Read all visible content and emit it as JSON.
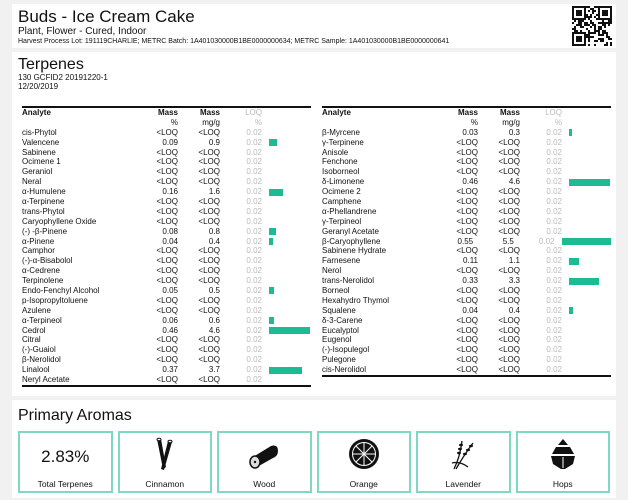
{
  "header": {
    "title": "Buds - Ice Cream Cake",
    "subtitle": "Plant, Flower - Cured, Indoor",
    "lot_line": "Harvest Process Lot: 191119CHARLIE; METRC Batch: 1A401030000B1BE0000000634; METRC Sample: 1A401030000B1BE0000000641",
    "qr_icon": "qr-code"
  },
  "terpenes": {
    "title": "Terpenes",
    "instrument": "130 GCFID2 20191220-1",
    "date": "12/20/2019",
    "columns": {
      "analyte": "Analyte",
      "mass_pct": "Mass",
      "mass_mgg": "Mass",
      "loq": "LOQ",
      "unit_pct": "%",
      "unit_mgg": "mg/g",
      "unit_loq": "%"
    },
    "bar_color": "#1dba94",
    "left": [
      [
        "cis-Phytol",
        "<LOQ",
        "<LOQ",
        "0.02"
      ],
      [
        "Valencene",
        "0.09",
        "0.9",
        "0.02"
      ],
      [
        "Sabinene",
        "<LOQ",
        "<LOQ",
        "0.02"
      ],
      [
        "Ocimene 1",
        "<LOQ",
        "<LOQ",
        "0.02"
      ],
      [
        "Geraniol",
        "<LOQ",
        "<LOQ",
        "0.02"
      ],
      [
        "Neral",
        "<LOQ",
        "<LOQ",
        "0.02"
      ],
      [
        "α-Humulene",
        "0.16",
        "1.6",
        "0.02"
      ],
      [
        "α-Terpinene",
        "<LOQ",
        "<LOQ",
        "0.02"
      ],
      [
        "trans-Phytol",
        "<LOQ",
        "<LOQ",
        "0.02"
      ],
      [
        "Caryophyllene Oxide",
        "<LOQ",
        "<LOQ",
        "0.02"
      ],
      [
        "(-) -β-Pinene",
        "0.08",
        "0.8",
        "0.02"
      ],
      [
        "α-Pinene",
        "0.04",
        "0.4",
        "0.02"
      ],
      [
        "Camphor",
        "<LOQ",
        "<LOQ",
        "0.02"
      ],
      [
        "(-)-α-Bisabolol",
        "<LOQ",
        "<LOQ",
        "0.02"
      ],
      [
        "α-Cedrene",
        "<LOQ",
        "<LOQ",
        "0.02"
      ],
      [
        "Terpinolene",
        "<LOQ",
        "<LOQ",
        "0.02"
      ],
      [
        "Endo-Fenchyl Alcohol",
        "0.05",
        "0.5",
        "0.02"
      ],
      [
        "p-Isopropyltoluene",
        "<LOQ",
        "<LOQ",
        "0.02"
      ],
      [
        "Azulene",
        "<LOQ",
        "<LOQ",
        "0.02"
      ],
      [
        "α-Terpineol",
        "0.06",
        "0.6",
        "0.02"
      ],
      [
        "Cedrol",
        "0.46",
        "4.6",
        "0.02"
      ],
      [
        "Citral",
        "<LOQ",
        "<LOQ",
        "0.02"
      ],
      [
        "(-)-Guaiol",
        "<LOQ",
        "<LOQ",
        "0.02"
      ],
      [
        "β-Nerolidol",
        "<LOQ",
        "<LOQ",
        "0.02"
      ],
      [
        "Linalool",
        "0.37",
        "3.7",
        "0.02"
      ],
      [
        "Neryl Acetate",
        "<LOQ",
        "<LOQ",
        "0.02"
      ]
    ],
    "right": [
      [
        "β-Myrcene",
        "0.03",
        "0.3",
        "0.02"
      ],
      [
        "γ-Terpinene",
        "<LOQ",
        "<LOQ",
        "0.02"
      ],
      [
        "Anisole",
        "<LOQ",
        "<LOQ",
        "0.02"
      ],
      [
        "Fenchone",
        "<LOQ",
        "<LOQ",
        "0.02"
      ],
      [
        "Isoborneol",
        "<LOQ",
        "<LOQ",
        "0.02"
      ],
      [
        "δ-Limonene",
        "0.46",
        "4.6",
        "0.02"
      ],
      [
        "Ocimene 2",
        "<LOQ",
        "<LOQ",
        "0.02"
      ],
      [
        "Camphene",
        "<LOQ",
        "<LOQ",
        "0.02"
      ],
      [
        "α-Phellandrene",
        "<LOQ",
        "<LOQ",
        "0.02"
      ],
      [
        "γ-Terpineol",
        "<LOQ",
        "<LOQ",
        "0.02"
      ],
      [
        "Geranyl Acetate",
        "<LOQ",
        "<LOQ",
        "0.02"
      ],
      [
        "β-Caryophyllene",
        "0.55",
        "5.5",
        "0.02"
      ],
      [
        "Sabinene Hydrate",
        "<LOQ",
        "<LOQ",
        "0.02"
      ],
      [
        "Farnesene",
        "0.11",
        "1.1",
        "0.02"
      ],
      [
        "Nerol",
        "<LOQ",
        "<LOQ",
        "0.02"
      ],
      [
        "trans-Nerolidol",
        "0.33",
        "3.3",
        "0.02"
      ],
      [
        "Borneol",
        "<LOQ",
        "<LOQ",
        "0.02"
      ],
      [
        "Hexahydro Thymol",
        "<LOQ",
        "<LOQ",
        "0.02"
      ],
      [
        "Squalene",
        "0.04",
        "0.4",
        "0.02"
      ],
      [
        "δ-3-Carene",
        "<LOQ",
        "<LOQ",
        "0.02"
      ],
      [
        "Eucalyptol",
        "<LOQ",
        "<LOQ",
        "0.02"
      ],
      [
        "Eugenol",
        "<LOQ",
        "<LOQ",
        "0.02"
      ],
      [
        "(-)-Isopulegol",
        "<LOQ",
        "<LOQ",
        "0.02"
      ],
      [
        "Pulegone",
        "<LOQ",
        "<LOQ",
        "0.02"
      ],
      [
        "cis-Nerolidol",
        "<LOQ",
        "<LOQ",
        "0.02"
      ]
    ]
  },
  "aromas": {
    "title": "Primary Aromas",
    "total_value": "2.83%",
    "total_label": "Total Terpenes",
    "items": [
      {
        "label": "Cinnamon",
        "icon": "cinnamon-icon"
      },
      {
        "label": "Wood",
        "icon": "wood-log-icon"
      },
      {
        "label": "Orange",
        "icon": "orange-slice-icon"
      },
      {
        "label": "Lavender",
        "icon": "lavender-icon"
      },
      {
        "label": "Hops",
        "icon": "hops-icon"
      }
    ]
  }
}
